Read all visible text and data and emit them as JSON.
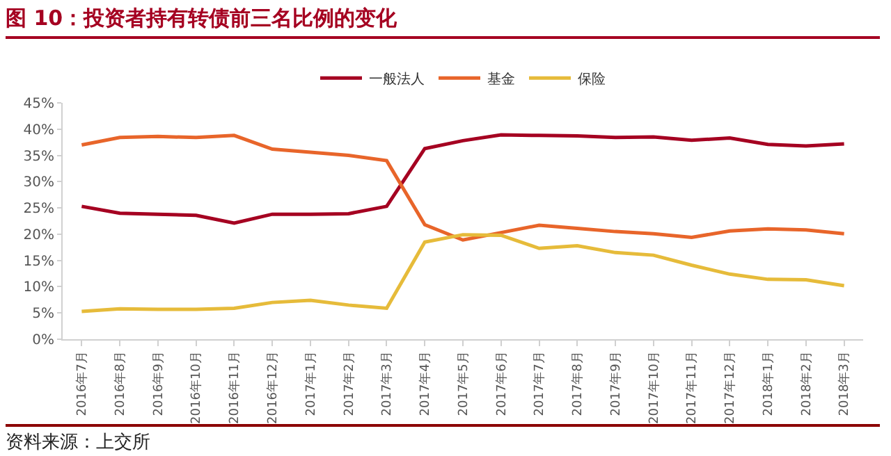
{
  "chart_data": {
    "type": "line",
    "title": "图 10：投资者持有转债前三名比例的变化",
    "categories": [
      "2016年7月",
      "2016年8月",
      "2016年9月",
      "2016年10月",
      "2016年11月",
      "2016年12月",
      "2017年1月",
      "2017年2月",
      "2017年3月",
      "2017年4月",
      "2017年5月",
      "2017年6月",
      "2017年7月",
      "2017年8月",
      "2017年9月",
      "2017年10月",
      "2017年11月",
      "2017年12月",
      "2018年1月",
      "2018年2月",
      "2018年3月"
    ],
    "series": [
      {
        "name": "一般法人",
        "color": "#a50021",
        "values": [
          25.3,
          24.0,
          23.8,
          23.6,
          22.1,
          23.8,
          23.8,
          23.9,
          25.3,
          36.3,
          37.8,
          38.9,
          38.8,
          38.7,
          38.4,
          38.5,
          37.9,
          38.3,
          37.1,
          36.8,
          37.2
        ]
      },
      {
        "name": "基金",
        "color": "#e8652a",
        "values": [
          37.0,
          38.4,
          38.6,
          38.4,
          38.8,
          36.2,
          35.6,
          35.0,
          34.0,
          21.8,
          18.9,
          20.3,
          21.7,
          21.1,
          20.5,
          20.1,
          19.4,
          20.6,
          21.0,
          20.8,
          20.1
        ]
      },
      {
        "name": "保险",
        "color": "#e6bb3a",
        "values": [
          5.3,
          5.8,
          5.7,
          5.7,
          5.9,
          7.0,
          7.4,
          6.5,
          5.9,
          18.5,
          19.9,
          19.8,
          17.3,
          17.8,
          16.5,
          16.0,
          14.1,
          12.4,
          11.4,
          11.3,
          10.2
        ]
      }
    ],
    "ylim": [
      0,
      45
    ],
    "yticks": [
      {
        "value": 0,
        "label": "0%"
      },
      {
        "value": 5,
        "label": "5%"
      },
      {
        "value": 10,
        "label": "10%"
      },
      {
        "value": 15,
        "label": "15%"
      },
      {
        "value": 20,
        "label": "20%"
      },
      {
        "value": 25,
        "label": "25%"
      },
      {
        "value": 30,
        "label": "30%"
      },
      {
        "value": 35,
        "label": "35%"
      },
      {
        "value": 40,
        "label": "40%"
      },
      {
        "value": 45,
        "label": "45%"
      }
    ],
    "grid": false,
    "legend": "top",
    "marker": "none",
    "line_style": "solid",
    "annotations": [
      "资料来源：上交所"
    ]
  }
}
